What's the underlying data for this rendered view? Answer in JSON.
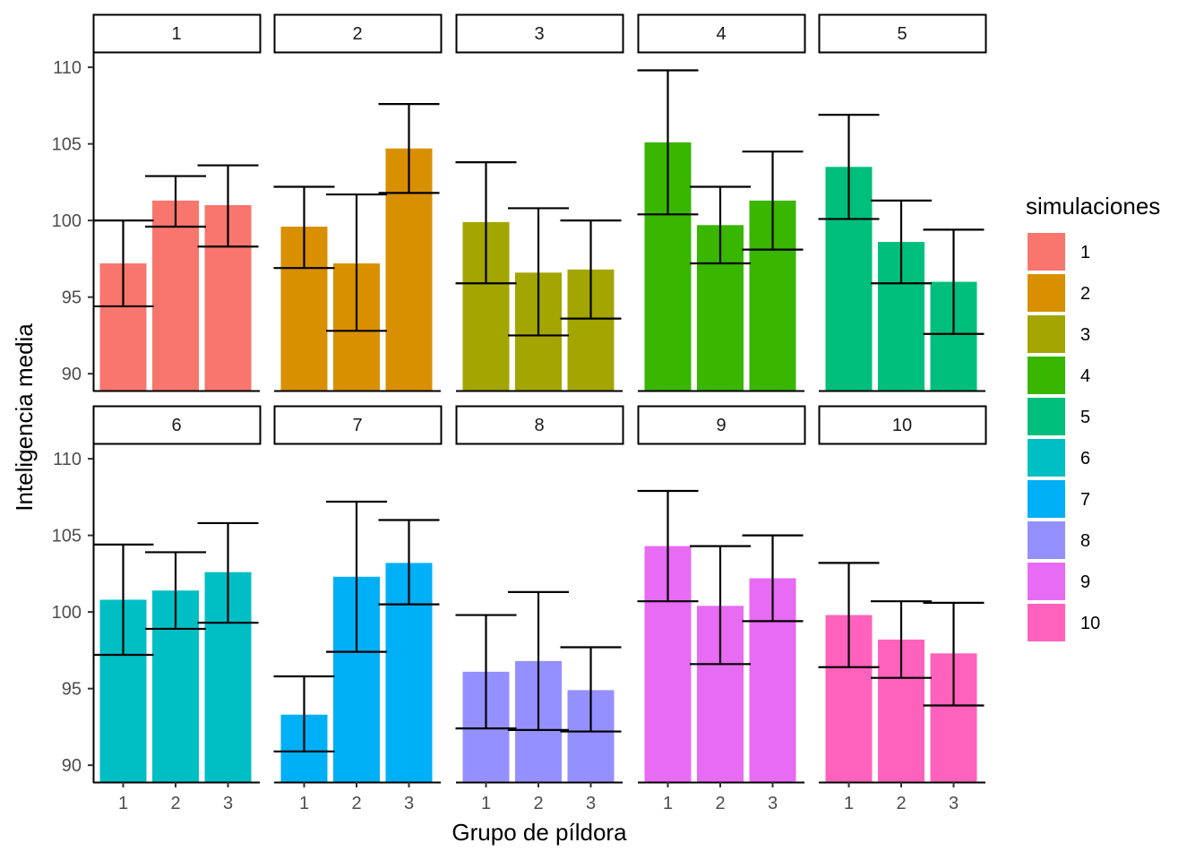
{
  "chart_data": {
    "type": "bar",
    "xlabel": "Grupo de píldora",
    "ylabel": "Inteligencia media",
    "y_ticks": [
      90,
      95,
      100,
      105,
      110
    ],
    "categories": [
      "1",
      "2",
      "3"
    ],
    "legend": {
      "title": "simulaciones",
      "placement": "right",
      "entries": [
        "1",
        "2",
        "3",
        "4",
        "5",
        "6",
        "7",
        "8",
        "9",
        "10"
      ]
    },
    "colors": [
      "#F8766D",
      "#D89000",
      "#A3A500",
      "#39B600",
      "#00BF7D",
      "#00BFC4",
      "#00B0F6",
      "#9590FF",
      "#E76BF3",
      "#FF62BC"
    ],
    "panels": [
      {
        "label": "1",
        "values": [
          97.2,
          101.3,
          101.0
        ],
        "err_low": [
          94.4,
          99.6,
          98.3
        ],
        "err_high": [
          100.0,
          102.9,
          103.6
        ]
      },
      {
        "label": "2",
        "values": [
          99.6,
          97.2,
          104.7
        ],
        "err_low": [
          96.9,
          92.8,
          101.8
        ],
        "err_high": [
          102.2,
          101.7,
          107.6
        ]
      },
      {
        "label": "3",
        "values": [
          99.9,
          96.6,
          96.8
        ],
        "err_low": [
          95.9,
          92.5,
          93.6
        ],
        "err_high": [
          103.8,
          100.8,
          100.0
        ]
      },
      {
        "label": "4",
        "values": [
          105.1,
          99.7,
          101.3
        ],
        "err_low": [
          100.4,
          97.2,
          98.1
        ],
        "err_high": [
          109.8,
          102.2,
          104.5
        ]
      },
      {
        "label": "5",
        "values": [
          103.5,
          98.6,
          96.0
        ],
        "err_low": [
          100.1,
          95.9,
          92.6
        ],
        "err_high": [
          106.9,
          101.3,
          99.4
        ]
      },
      {
        "label": "6",
        "values": [
          100.8,
          101.4,
          102.6
        ],
        "err_low": [
          97.2,
          98.9,
          99.3
        ],
        "err_high": [
          104.4,
          103.9,
          105.8
        ]
      },
      {
        "label": "7",
        "values": [
          93.3,
          102.3,
          103.2
        ],
        "err_low": [
          90.9,
          97.4,
          100.5
        ],
        "err_high": [
          95.8,
          107.2,
          106.0
        ]
      },
      {
        "label": "8",
        "values": [
          96.1,
          96.8,
          94.9
        ],
        "err_low": [
          92.4,
          92.3,
          92.2
        ],
        "err_high": [
          99.8,
          101.3,
          97.7
        ]
      },
      {
        "label": "9",
        "values": [
          104.3,
          100.4,
          102.2
        ],
        "err_low": [
          100.7,
          96.6,
          99.4
        ],
        "err_high": [
          107.9,
          104.3,
          105.0
        ]
      },
      {
        "label": "10",
        "values": [
          99.8,
          98.2,
          97.3
        ],
        "err_low": [
          96.4,
          95.7,
          93.9
        ],
        "err_high": [
          103.2,
          100.7,
          100.6
        ]
      }
    ]
  }
}
